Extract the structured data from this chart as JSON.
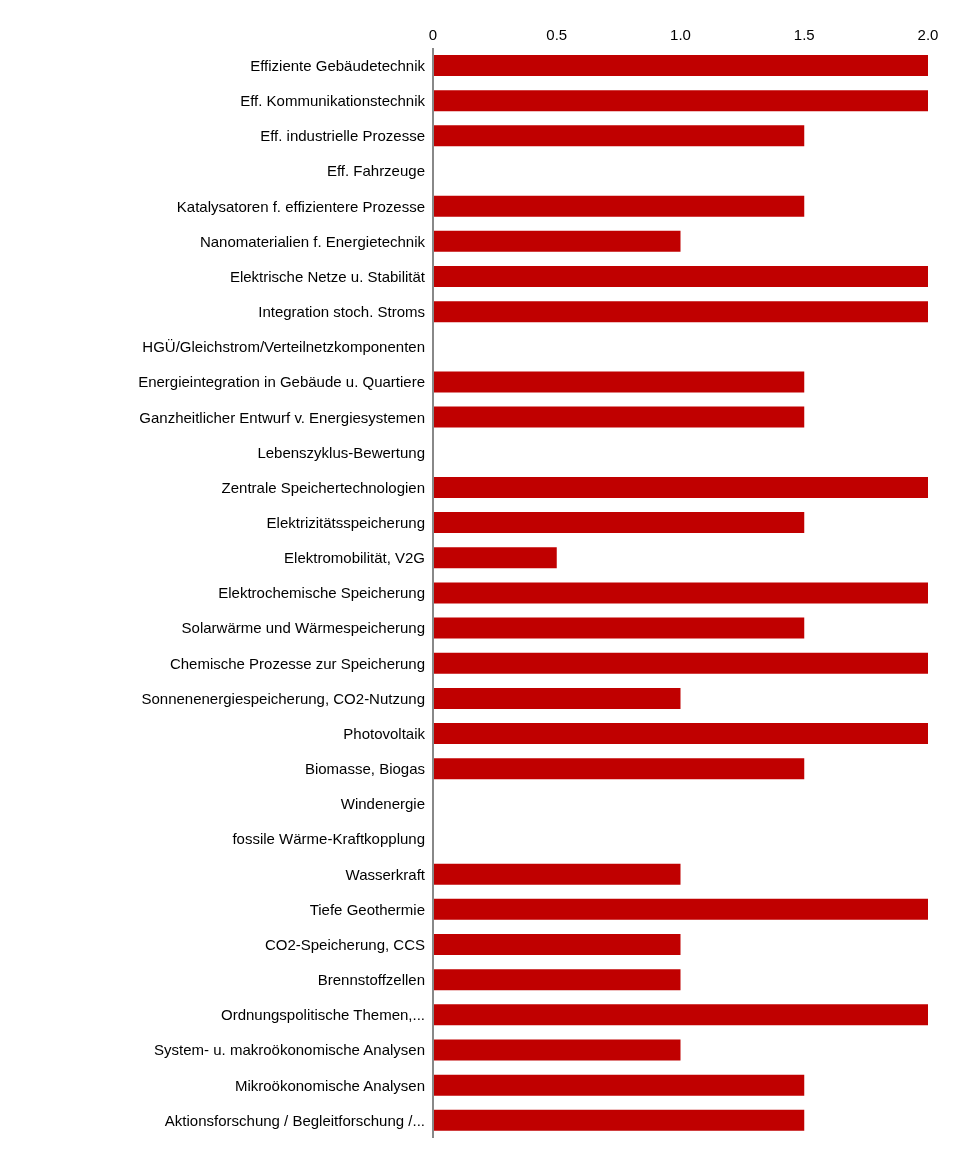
{
  "chart_data": {
    "type": "bar",
    "orientation": "horizontal",
    "color": "#c00000",
    "categories": [
      "Effiziente Gebäudetechnik",
      "Eff. Kommunikationstechnik",
      "Eff. industrielle Prozesse",
      "Eff. Fahrzeuge",
      "Katalysatoren f. effizientere Prozesse",
      "Nanomaterialien f. Energietechnik",
      "Elektrische Netze u. Stabilität",
      "Integration stoch. Stroms",
      "HGÜ/Gleichstrom/Verteilnetzkomponenten",
      "Energieintegration in Gebäude u. Quartiere",
      "Ganzheitlicher Entwurf v. Energiesystemen",
      "Lebenszyklus-Bewertung",
      "Zentrale Speichertechnologien",
      "Elektrizitätsspeicherung",
      "Elektromobilität, V2G",
      "Elektrochemische Speicherung",
      "Solarwärme und Wärmespeicherung",
      "Chemische Prozesse zur Speicherung",
      "Sonnenenergiespeicherung, CO2-Nutzung",
      "Photovoltaik",
      "Biomasse, Biogas",
      "Windenergie",
      "fossile Wärme-Kraftkopplung",
      "Wasserkraft",
      "Tiefe Geothermie",
      "CO2-Speicherung, CCS",
      "Brennstoffzellen",
      "Ordnungspolitische Themen,...",
      "System- u. makroökonomische Analysen",
      "Mikroökonomische Analysen",
      "Aktionsforschung / Begleitforschung /..."
    ],
    "values": [
      2,
      2,
      1.5,
      0,
      1.5,
      1,
      2,
      2,
      0,
      1.5,
      1.5,
      0,
      2,
      1.5,
      0.5,
      2,
      1.5,
      2,
      1,
      2,
      1.5,
      0,
      0,
      1,
      2,
      1,
      1,
      2,
      1,
      1.5,
      1.5
    ],
    "xlim": [
      0,
      2
    ],
    "xticks": [
      0,
      0.5,
      {
        "value": 1,
        "label": "1.0"
      },
      1.5,
      {
        "value": 2,
        "label": "2.0"
      }
    ],
    "grid": false
  }
}
